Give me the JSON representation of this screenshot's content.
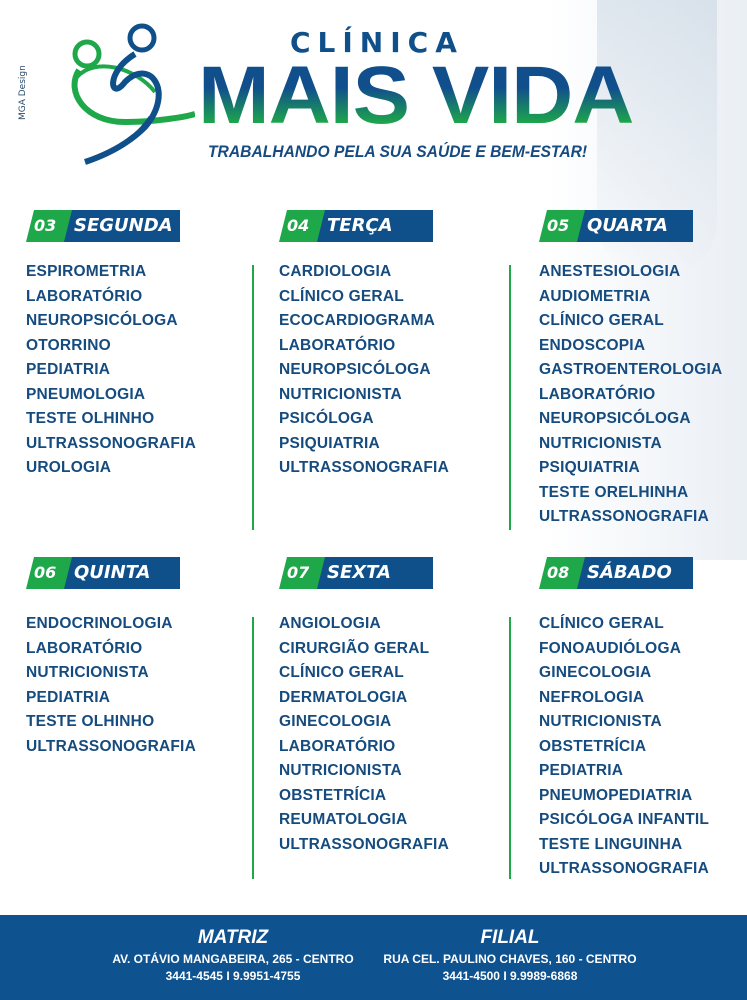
{
  "credit": "MGA Design",
  "header": {
    "clinic": "CLÍNICA",
    "name": "MAIS VIDA",
    "tagline": "TRABALHANDO PELA SUA SAÚDE E BEM-ESTAR!"
  },
  "colors": {
    "blue": "#0f4f8a",
    "green": "#1ea84a",
    "text": "#154b7e"
  },
  "days": [
    {
      "num": "03",
      "name": "SEGUNDA",
      "items": [
        "ESPIROMETRIA",
        "LABORATÓRIO",
        "NEUROPSICÓLOGA",
        "OTORRINO",
        "PEDIATRIA",
        "PNEUMOLOGIA",
        "TESTE OLHINHO",
        "ULTRASSONOGRAFIA",
        "UROLOGIA"
      ]
    },
    {
      "num": "04",
      "name": "TERÇA",
      "items": [
        "CARDIOLOGIA",
        "CLÍNICO GERAL",
        "ECOCARDIOGRAMA",
        "LABORATÓRIO",
        "NEUROPSICÓLOGA",
        "NUTRICIONISTA",
        "PSICÓLOGA",
        "PSIQUIATRIA",
        "ULTRASSONOGRAFIA"
      ]
    },
    {
      "num": "05",
      "name": "QUARTA",
      "items": [
        "ANESTESIOLOGIA",
        "AUDIOMETRIA",
        "CLÍNICO GERAL",
        "ENDOSCOPIA",
        "GASTROENTEROLOGIA",
        "LABORATÓRIO",
        "NEUROPSICÓLOGA",
        "NUTRICIONISTA",
        "PSIQUIATRIA",
        "TESTE ORELHINHA",
        "ULTRASSONOGRAFIA"
      ]
    },
    {
      "num": "06",
      "name": "QUINTA",
      "items": [
        "ENDOCRINOLOGIA",
        "LABORATÓRIO",
        "NUTRICIONISTA",
        "PEDIATRIA",
        "TESTE OLHINHO",
        "ULTRASSONOGRAFIA"
      ]
    },
    {
      "num": "07",
      "name": "SEXTA",
      "items": [
        "ANGIOLOGIA",
        "CIRURGIÃO GERAL",
        "CLÍNICO GERAL",
        "DERMATOLOGIA",
        "GINECOLOGIA",
        "LABORATÓRIO",
        "NUTRICIONISTA",
        "OBSTETRÍCIA",
        "REUMATOLOGIA",
        "ULTRASSONOGRAFIA"
      ]
    },
    {
      "num": "08",
      "name": "SÁBADO",
      "items": [
        "CLÍNICO GERAL",
        "FONOAUDIÓLOGA",
        "GINECOLOGIA",
        "NEFROLOGIA",
        "NUTRICIONISTA",
        "OBSTETRÍCIA",
        "PEDIATRIA",
        "PNEUMOPEDIATRIA",
        "PSICÓLOGA INFANTIL",
        "TESTE LINGUINHA",
        "ULTRASSONOGRAFIA"
      ]
    }
  ],
  "footer": {
    "matriz": {
      "title": "MATRIZ",
      "address": "AV. OTÁVIO MANGABEIRA, 265 - CENTRO",
      "phones": "3441-4545 I 9.9951-4755"
    },
    "filial": {
      "title": "FILIAL",
      "address": "RUA CEL. PAULINO CHAVES, 160 - CENTRO",
      "phones": "3441-4500 I 9.9989-6868"
    }
  }
}
